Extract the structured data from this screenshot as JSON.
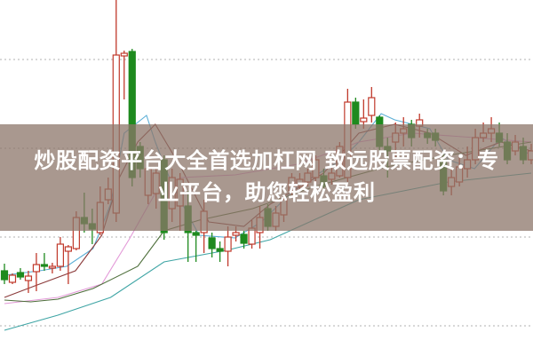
{
  "banner": {
    "line1": "炒股配资平台大全首选加杠网 致远股票配资：专",
    "line2": "业平台，助您轻松盈利"
  },
  "colors": {
    "up": "#c0392b",
    "down": "#1e8a1e",
    "grid": "#b0b0b0",
    "banner": "#8c766a"
  },
  "chart_data": {
    "type": "candlestick",
    "title": "",
    "grid": true,
    "ylim": [
      0,
      400
    ],
    "candles_ohlc": [
      [
        95,
        85,
        103,
        80
      ],
      [
        82,
        90,
        92,
        80
      ],
      [
        93,
        88,
        98,
        85
      ],
      [
        84,
        89,
        95,
        70
      ],
      [
        94,
        102,
        115,
        72
      ],
      [
        102,
        100,
        115,
        95
      ],
      [
        98,
        100,
        104,
        92
      ],
      [
        100,
        125,
        133,
        95
      ],
      [
        117,
        122,
        124,
        80
      ],
      [
        120,
        155,
        162,
        118
      ],
      [
        155,
        148,
        183,
        138
      ],
      [
        148,
        142,
        165,
        125
      ],
      [
        138,
        172,
        190,
        135
      ],
      [
        175,
        187,
        200,
        170
      ],
      [
        160,
        338,
        400,
        150
      ],
      [
        337,
        340,
        343,
        288
      ],
      [
        342,
        200,
        345,
        190
      ],
      [
        235,
        210,
        240,
        200
      ],
      [
        180,
        210,
        215,
        170
      ],
      [
        182,
        205,
        212,
        165
      ],
      [
        220,
        138,
        225,
        130
      ],
      [
        165,
        200,
        210,
        150
      ],
      [
        168,
        198,
        205,
        140
      ],
      [
        168,
        138,
        185,
        105
      ],
      [
        138,
        135,
        140,
        105
      ],
      [
        138,
        162,
        175,
        115
      ],
      [
        132,
        120,
        138,
        110
      ],
      [
        120,
        117,
        128,
        105
      ],
      [
        117,
        133,
        145,
        100
      ],
      [
        135,
        138,
        145,
        128
      ],
      [
        136,
        126,
        140,
        120
      ],
      [
        125,
        143,
        152,
        120
      ],
      [
        138,
        155,
        168,
        120
      ],
      [
        165,
        145,
        170,
        140
      ],
      [
        145,
        160,
        168,
        140
      ],
      [
        158,
        175,
        180,
        150
      ],
      [
        185,
        200,
        205,
        180
      ],
      [
        190,
        198,
        205,
        185
      ],
      [
        195,
        205,
        210,
        190
      ],
      [
        200,
        220,
        225,
        195
      ],
      [
        202,
        190,
        210,
        185
      ],
      [
        198,
        205,
        212,
        192
      ],
      [
        202,
        235,
        240,
        200
      ],
      [
        200,
        285,
        300,
        195
      ],
      [
        285,
        260,
        290,
        255
      ],
      [
        263,
        267,
        288,
        255
      ],
      [
        270,
        290,
        302,
        262
      ],
      [
        268,
        235,
        270,
        230
      ],
      [
        235,
        230,
        245,
        200
      ],
      [
        240,
        250,
        262,
        220
      ],
      [
        250,
        255,
        268,
        235
      ],
      [
        260,
        245,
        265,
        235
      ],
      [
        258,
        265,
        272,
        245
      ],
      [
        250,
        245,
        255,
        238
      ],
      [
        250,
        242,
        255,
        235
      ],
      [
        220,
        185,
        230,
        180
      ],
      [
        190,
        200,
        210,
        180
      ],
      [
        195,
        212,
        225,
        190
      ],
      [
        210,
        220,
        235,
        200
      ],
      [
        220,
        245,
        255,
        215
      ],
      [
        245,
        250,
        262,
        240
      ],
      [
        250,
        255,
        268,
        240
      ],
      [
        250,
        240,
        262,
        235
      ],
      [
        240,
        220,
        250,
        215
      ],
      [
        230,
        240,
        248,
        225
      ],
      [
        235,
        220,
        245,
        215
      ],
      [
        220,
        230,
        238,
        215
      ]
    ],
    "moving_averages": [
      {
        "color": "#5aaed6",
        "points": [
          [
            0,
            90
          ],
          [
            4.4,
            95
          ],
          [
            7.8,
            100
          ],
          [
            11.1,
            120
          ],
          [
            13.3,
            170
          ],
          [
            15,
            250
          ],
          [
            16.4,
            260
          ],
          [
            17.8,
            270
          ],
          [
            18.9,
            240
          ],
          [
            21.1,
            190
          ],
          [
            24.4,
            135
          ],
          [
            28.9,
            132
          ],
          [
            32.2,
            150
          ],
          [
            36.7,
            190
          ],
          [
            42.2,
            220
          ],
          [
            44.4,
            240
          ],
          [
            47.2,
            272
          ],
          [
            48.9,
            265
          ],
          [
            53.3,
            255
          ],
          [
            55.6,
            220
          ],
          [
            58.9,
            210
          ],
          [
            62.2,
            245
          ],
          [
            66,
            225
          ]
        ]
      },
      {
        "color": "#8b3a3a",
        "points": [
          [
            0,
            65
          ],
          [
            4.4,
            80
          ],
          [
            8.9,
            95
          ],
          [
            12.2,
            135
          ],
          [
            14.4,
            200
          ],
          [
            16.7,
            240
          ],
          [
            18.9,
            260
          ],
          [
            22.2,
            210
          ],
          [
            25.6,
            150
          ],
          [
            30,
            145
          ],
          [
            33.3,
            170
          ],
          [
            40,
            205
          ],
          [
            44.4,
            250
          ],
          [
            48.9,
            260
          ],
          [
            53.3,
            250
          ],
          [
            57.8,
            225
          ],
          [
            62.2,
            240
          ],
          [
            66,
            230
          ]
        ]
      },
      {
        "color": "#e39ad8",
        "points": [
          [
            0,
            58
          ],
          [
            6.7,
            65
          ],
          [
            12.2,
            80
          ],
          [
            15.6,
            130
          ],
          [
            17.8,
            165
          ],
          [
            19.4,
            190
          ],
          [
            22.2,
            200
          ],
          [
            28.9,
            203
          ],
          [
            36.7,
            215
          ],
          [
            44.4,
            240
          ],
          [
            51.1,
            250
          ],
          [
            58.9,
            245
          ],
          [
            66,
            240
          ]
        ]
      },
      {
        "color": "#4d6e3a",
        "points": [
          [
            0,
            62
          ],
          [
            3.3,
            60
          ],
          [
            6.7,
            63
          ],
          [
            11.1,
            75
          ],
          [
            16.7,
            100
          ],
          [
            20,
            140
          ],
          [
            24.4,
            152
          ],
          [
            31.1,
            165
          ],
          [
            38.9,
            190
          ],
          [
            47.8,
            212
          ],
          [
            55.6,
            225
          ],
          [
            66,
            240
          ]
        ]
      },
      {
        "color": "#3fa5a5",
        "points": [
          [
            0,
            28
          ],
          [
            6.7,
            45
          ],
          [
            13.3,
            65
          ],
          [
            20,
            105
          ],
          [
            27.8,
            118
          ],
          [
            33.3,
            130
          ],
          [
            44.4,
            175
          ],
          [
            55.6,
            195
          ],
          [
            66,
            205
          ]
        ]
      }
    ]
  }
}
